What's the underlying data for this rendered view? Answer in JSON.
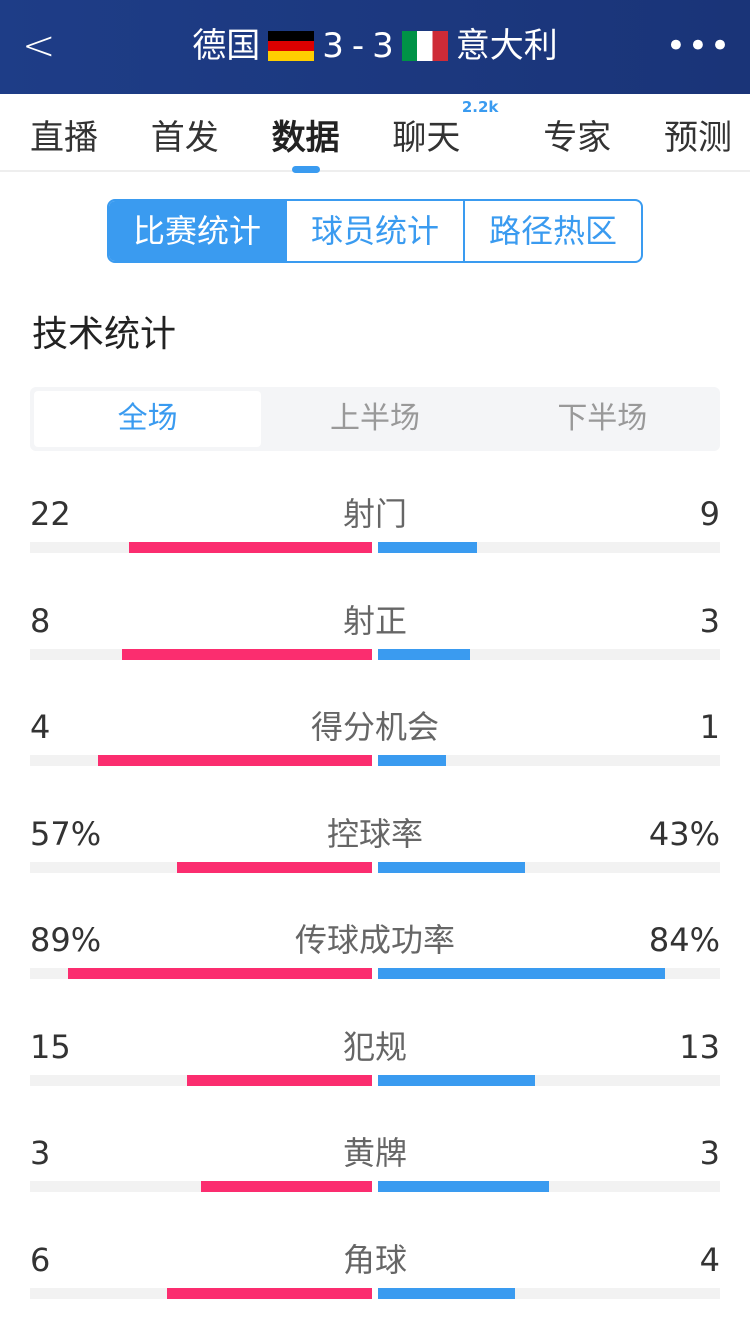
{
  "header": {
    "home": "德国",
    "away": "意大利",
    "score_home": "3",
    "separator": "-",
    "score_away": "3"
  },
  "tabs": [
    {
      "label": "直播"
    },
    {
      "label": "首发"
    },
    {
      "label": "数据",
      "active": true
    },
    {
      "label": "聊天",
      "badge": "2.2k"
    },
    {
      "label": "专家"
    },
    {
      "label": "预测"
    }
  ],
  "segments": [
    "比赛统计",
    "球员统计",
    "路径热区"
  ],
  "section_title": "技术统计",
  "periods": [
    "全场",
    "上半场",
    "下半场"
  ],
  "colors": {
    "home": "#fb2d6f",
    "away": "#3a9bf0",
    "header": "#1e3d87"
  },
  "stats": [
    {
      "name": "射门",
      "home": "22",
      "away": "9",
      "home_fill": 0.71,
      "away_fill": 0.29
    },
    {
      "name": "射正",
      "home": "8",
      "away": "3",
      "home_fill": 0.73,
      "away_fill": 0.27
    },
    {
      "name": "得分机会",
      "home": "4",
      "away": "1",
      "home_fill": 0.8,
      "away_fill": 0.2
    },
    {
      "name": "控球率",
      "home": "57%",
      "away": "43%",
      "home_fill": 0.57,
      "away_fill": 0.43
    },
    {
      "name": "传球成功率",
      "home": "89%",
      "away": "84%",
      "home_fill": 0.89,
      "away_fill": 0.84
    },
    {
      "name": "犯规",
      "home": "15",
      "away": "13",
      "home_fill": 0.54,
      "away_fill": 0.46
    },
    {
      "name": "黄牌",
      "home": "3",
      "away": "3",
      "home_fill": 0.5,
      "away_fill": 0.5
    },
    {
      "name": "角球",
      "home": "6",
      "away": "4",
      "home_fill": 0.6,
      "away_fill": 0.4
    }
  ]
}
